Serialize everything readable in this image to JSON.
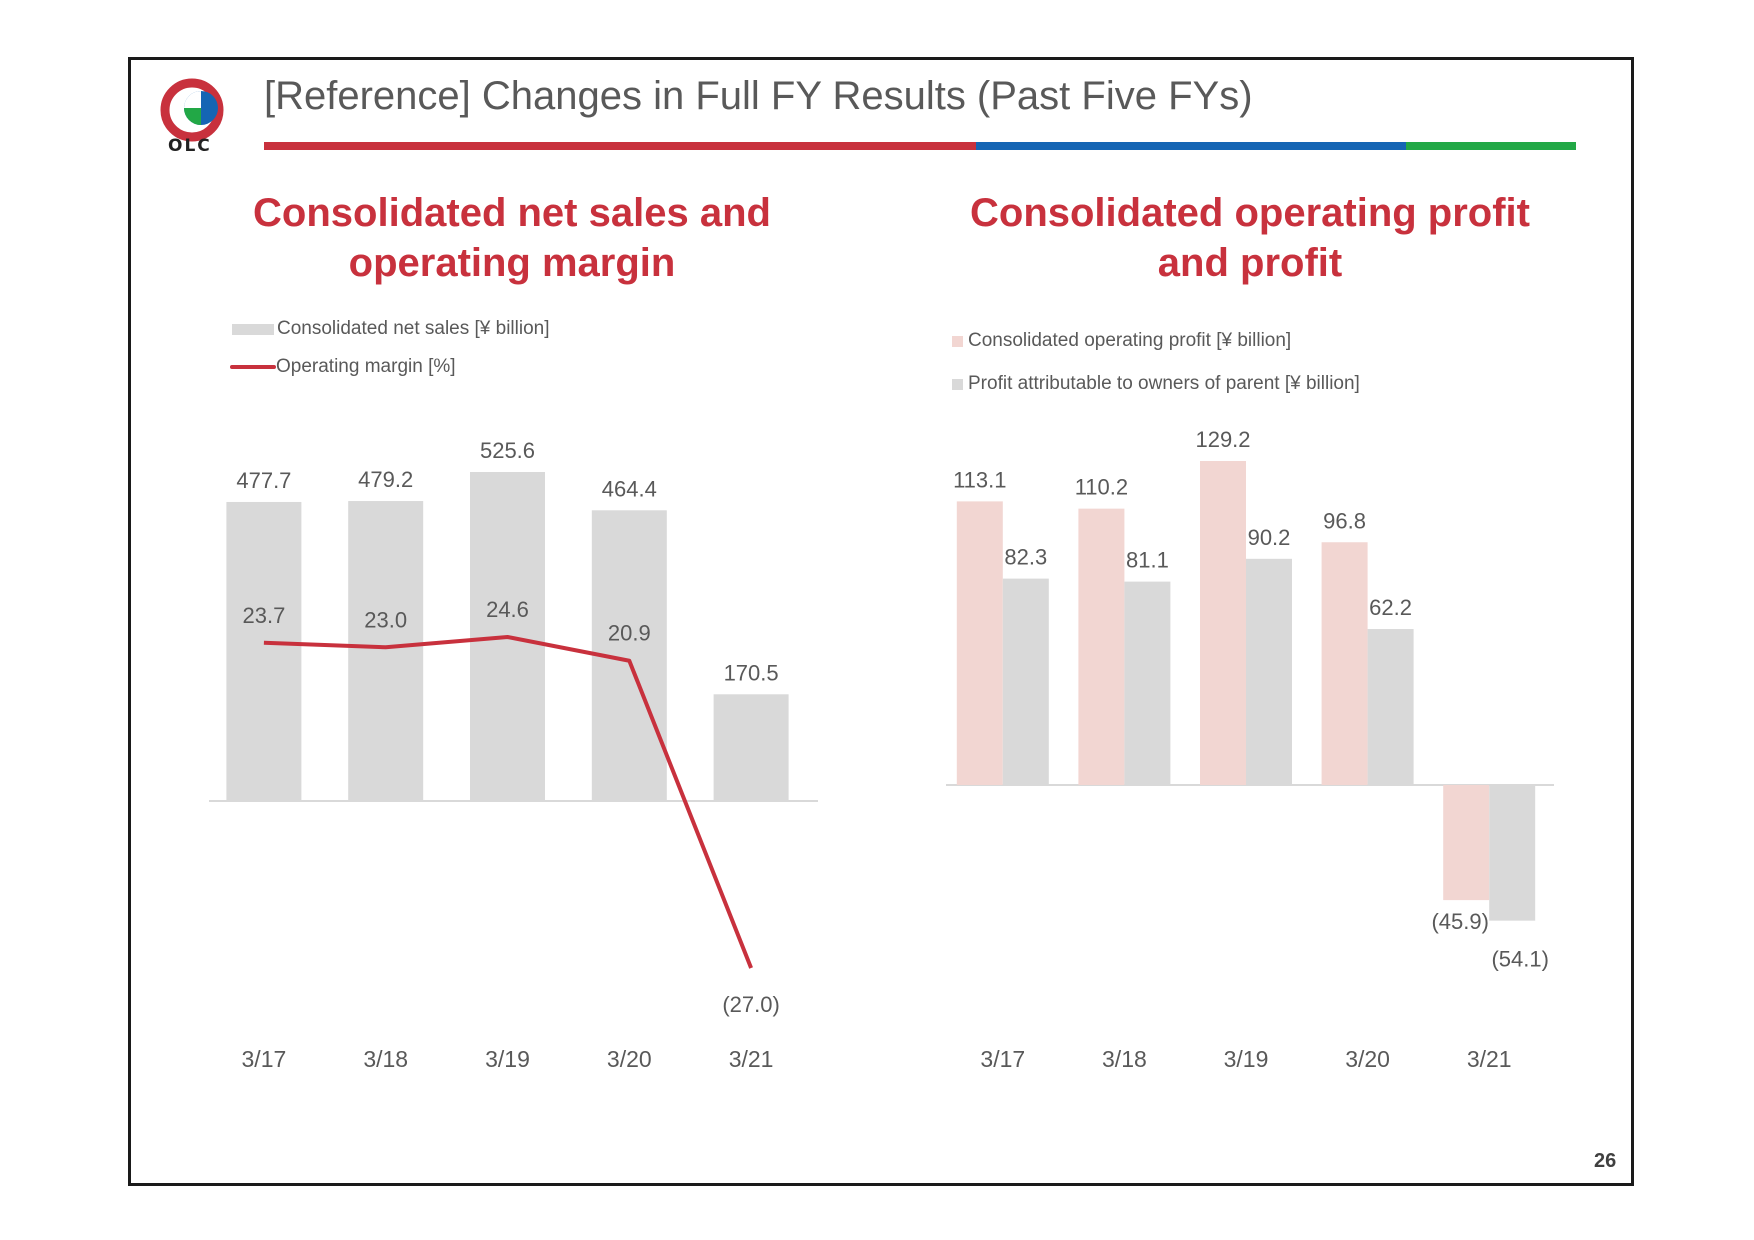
{
  "header": {
    "title": "[Reference] Changes in Full FY Results (Past Five FYs)",
    "logo_text": "OLC",
    "logo_icon": "olc-logo-icon"
  },
  "colors": {
    "brand_red": "#c8313d",
    "brand_blue": "#1565b4",
    "brand_green": "#22a846",
    "bar_gray": "#d9d9d9",
    "bar_pink": "#f2d6d2",
    "text_gray": "#595959"
  },
  "page_number": "26",
  "chart_data": [
    {
      "type": "bar",
      "title": "Consolidated net sales and operating margin",
      "categories": [
        "3/17",
        "3/18",
        "3/19",
        "3/20",
        "3/21"
      ],
      "series": [
        {
          "name": "Consolidated net sales [¥ billion]",
          "type": "bar",
          "values": [
            477.7,
            479.2,
            525.6,
            464.4,
            170.5
          ],
          "labels": [
            "477.7",
            "479.2",
            "525.6",
            "464.4",
            "170.5"
          ]
        },
        {
          "name": "Operating margin [%]",
          "type": "line",
          "values": [
            23.7,
            23.0,
            24.6,
            20.9,
            -27.0
          ],
          "labels": [
            "23.7",
            "23.0",
            "24.6",
            "20.9",
            "(27.0)"
          ]
        }
      ],
      "ylim": [
        0,
        560
      ],
      "y2lim": [
        -30,
        50
      ],
      "xlabel": "",
      "ylabel": "",
      "legend_position": "top-left",
      "grid": false
    },
    {
      "type": "bar",
      "title": "Consolidated operating profit and profit",
      "categories": [
        "3/17",
        "3/18",
        "3/19",
        "3/20",
        "3/21"
      ],
      "series": [
        {
          "name": "Consolidated operating profit [¥ billion]",
          "values": [
            113.1,
            110.2,
            129.2,
            96.8,
            -45.9
          ],
          "labels": [
            "113.1",
            "110.2",
            "129.2",
            "96.8",
            "(45.9)"
          ]
        },
        {
          "name": "Profit attributable to owners of parent [¥ billion]",
          "values": [
            82.3,
            81.1,
            90.2,
            62.2,
            -54.1
          ],
          "labels": [
            "82.3",
            "81.1",
            "90.2",
            "62.2",
            "(54.1)"
          ]
        }
      ],
      "ylim": [
        -60,
        140
      ],
      "xlabel": "",
      "ylabel": "",
      "legend_position": "top-left",
      "grid": false
    }
  ]
}
